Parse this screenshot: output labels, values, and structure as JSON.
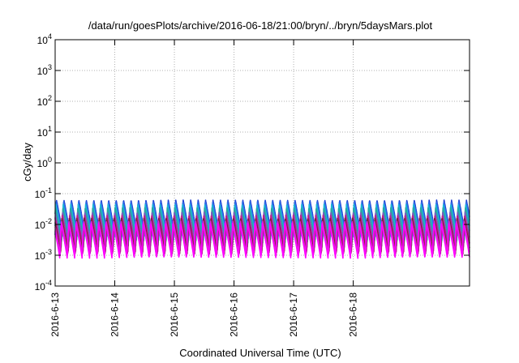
{
  "chart_data": {
    "type": "line",
    "title": "/data/run/goesPlots/archive/2016-06-18/21:00/bryn/../bryn/5daysMars.plot",
    "xlabel": "Coordinated Universal Time (UTC)",
    "ylabel": "cGy/day",
    "yscale": "log",
    "ylim": [
      0.0001,
      10000
    ],
    "y_tick_exponents": [
      -4,
      -3,
      -2,
      -1,
      0,
      1,
      2,
      3,
      4
    ],
    "y_tick_base": "10",
    "xlim_days": [
      0,
      6.95
    ],
    "x_ticks": [
      {
        "day": 0,
        "label": "2016-6-13"
      },
      {
        "day": 1,
        "label": "2016-6-14"
      },
      {
        "day": 2,
        "label": "2016-6-15"
      },
      {
        "day": 3,
        "label": "2016-6-16"
      },
      {
        "day": 4,
        "label": "2016-6-17"
      },
      {
        "day": 5,
        "label": "2016-6-18"
      }
    ],
    "grid": true,
    "legend": "none",
    "cycle_period_days": 0.125,
    "series": [
      {
        "color": "#1f3fd0",
        "peak": 0.062,
        "trough": 0.0045
      },
      {
        "color": "#2f6fe8",
        "peak": 0.055,
        "trough": 0.004
      },
      {
        "color": "#19b6d6",
        "peak": 0.045,
        "trough": 0.003
      },
      {
        "color": "#2aa7a0",
        "peak": 0.035,
        "trough": 0.0025
      },
      {
        "color": "#7a5bbf",
        "peak": 0.025,
        "trough": 0.0018
      },
      {
        "color": "#c21a8a",
        "peak": 0.02,
        "trough": 0.0013
      },
      {
        "color": "#7a1f3a",
        "peak": 0.016,
        "trough": 0.0011
      },
      {
        "color": "#d42bd0",
        "peak": 0.013,
        "trough": 0.001
      },
      {
        "color": "#ff00ff",
        "peak": 0.011,
        "trough": 0.0008
      }
    ]
  }
}
